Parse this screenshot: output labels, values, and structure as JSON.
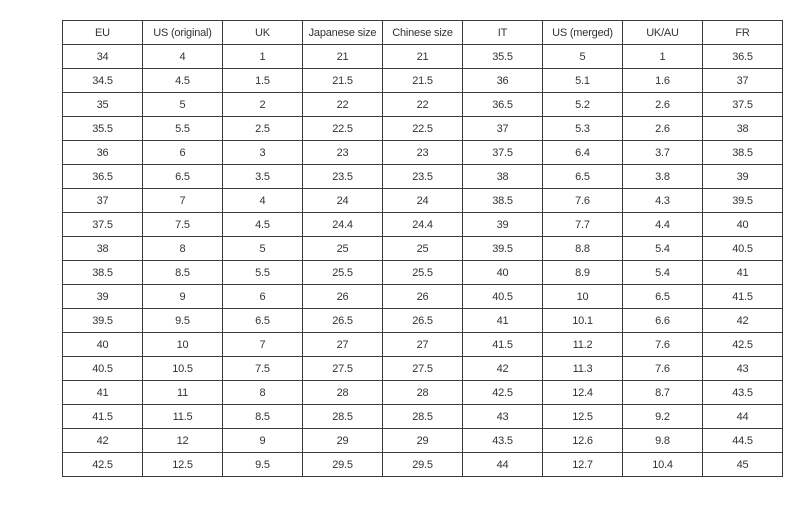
{
  "colors": {
    "border": "#3b3b3b",
    "text": "#333333",
    "background": "#ffffff"
  },
  "chart_data": {
    "type": "table",
    "title": "",
    "headers": [
      "EU",
      "US (original)",
      "UK",
      "Japanese size",
      "Chinese size",
      "IT",
      "US (merged)",
      "UK/AU",
      "FR"
    ],
    "rows": [
      [
        "34",
        "4",
        "1",
        "21",
        "21",
        "35.5",
        "5",
        "1",
        "36.5"
      ],
      [
        "34.5",
        "4.5",
        "1.5",
        "21.5",
        "21.5",
        "36",
        "5.1",
        "1.6",
        "37"
      ],
      [
        "35",
        "5",
        "2",
        "22",
        "22",
        "36.5",
        "5.2",
        "2.6",
        "37.5"
      ],
      [
        "35.5",
        "5.5",
        "2.5",
        "22.5",
        "22.5",
        "37",
        "5.3",
        "2.6",
        "38"
      ],
      [
        "36",
        "6",
        "3",
        "23",
        "23",
        "37.5",
        "6.4",
        "3.7",
        "38.5"
      ],
      [
        "36.5",
        "6.5",
        "3.5",
        "23.5",
        "23.5",
        "38",
        "6.5",
        "3.8",
        "39"
      ],
      [
        "37",
        "7",
        "4",
        "24",
        "24",
        "38.5",
        "7.6",
        "4.3",
        "39.5"
      ],
      [
        "37.5",
        "7.5",
        "4.5",
        "24.4",
        "24.4",
        "39",
        "7.7",
        "4.4",
        "40"
      ],
      [
        "38",
        "8",
        "5",
        "25",
        "25",
        "39.5",
        "8.8",
        "5.4",
        "40.5"
      ],
      [
        "38.5",
        "8.5",
        "5.5",
        "25.5",
        "25.5",
        "40",
        "8.9",
        "5.4",
        "41"
      ],
      [
        "39",
        "9",
        "6",
        "26",
        "26",
        "40.5",
        "10",
        "6.5",
        "41.5"
      ],
      [
        "39.5",
        "9.5",
        "6.5",
        "26.5",
        "26.5",
        "41",
        "10.1",
        "6.6",
        "42"
      ],
      [
        "40",
        "10",
        "7",
        "27",
        "27",
        "41.5",
        "11.2",
        "7.6",
        "42.5"
      ],
      [
        "40.5",
        "10.5",
        "7.5",
        "27.5",
        "27.5",
        "42",
        "11.3",
        "7.6",
        "43"
      ],
      [
        "41",
        "11",
        "8",
        "28",
        "28",
        "42.5",
        "12.4",
        "8.7",
        "43.5"
      ],
      [
        "41.5",
        "11.5",
        "8.5",
        "28.5",
        "28.5",
        "43",
        "12.5",
        "9.2",
        "44"
      ],
      [
        "42",
        "12",
        "9",
        "29",
        "29",
        "43.5",
        "12.6",
        "9.8",
        "44.5"
      ],
      [
        "42.5",
        "12.5",
        "9.5",
        "29.5",
        "29.5",
        "44",
        "12.7",
        "10.4",
        "45"
      ]
    ]
  }
}
